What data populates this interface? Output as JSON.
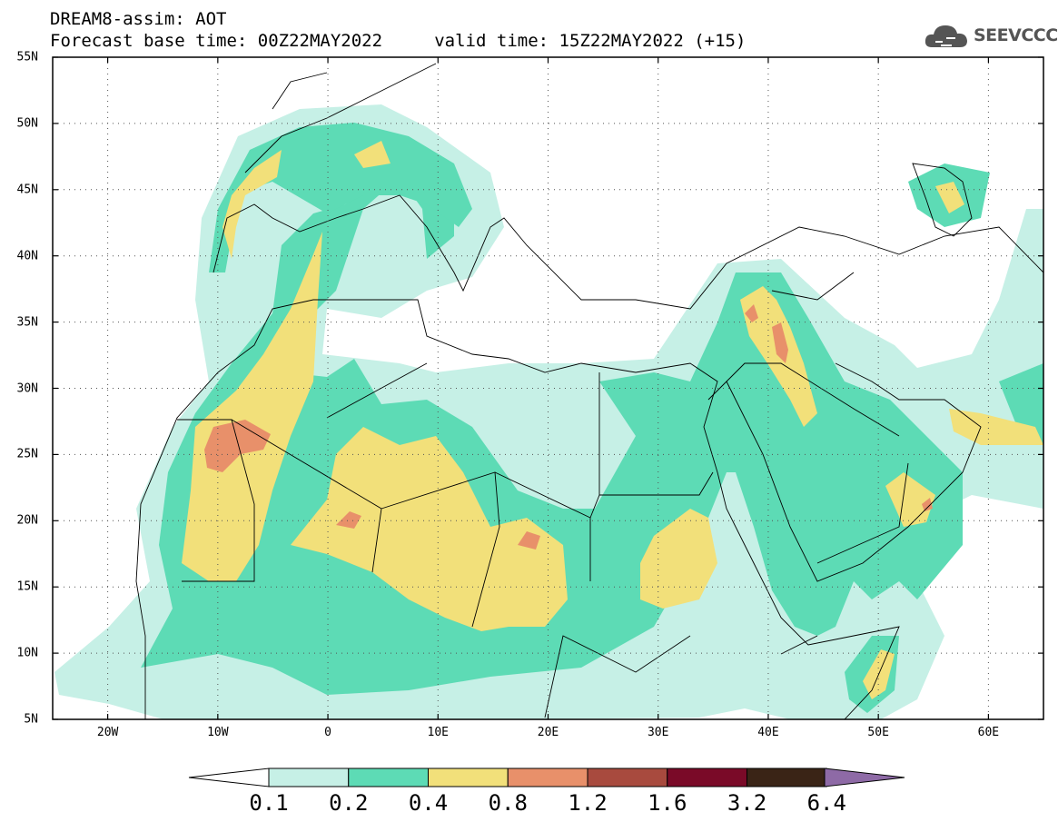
{
  "header": {
    "line1": "DREAM8-assim: AOT",
    "line2": "Forecast base time: 00Z22MAY2022     valid time: 15Z22MAY2022 (+15)",
    "logo_text": "SEEVCCC"
  },
  "map": {
    "lat_labels": [
      "55N",
      "50N",
      "45N",
      "40N",
      "35N",
      "30N",
      "25N",
      "20N",
      "15N",
      "10N",
      "5N"
    ],
    "lon_labels": [
      "20W",
      "10W",
      "0",
      "10E",
      "20E",
      "30E",
      "40E",
      "50E",
      "60E"
    ],
    "extent": {
      "lon": [
        -25,
        65
      ],
      "lat": [
        5,
        55
      ]
    }
  },
  "colorbar": {
    "labels": [
      "0.1",
      "0.2",
      "0.4",
      "0.8",
      "1.2",
      "1.6",
      "3.2",
      "6.4"
    ],
    "colors": [
      "#c6f0e6",
      "#5ddbb5",
      "#f2e07a",
      "#e8906a",
      "#a84a3e",
      "#7a0a28",
      "#3a2416",
      "#8e6aa6"
    ],
    "under_color": "#ffffff"
  }
}
